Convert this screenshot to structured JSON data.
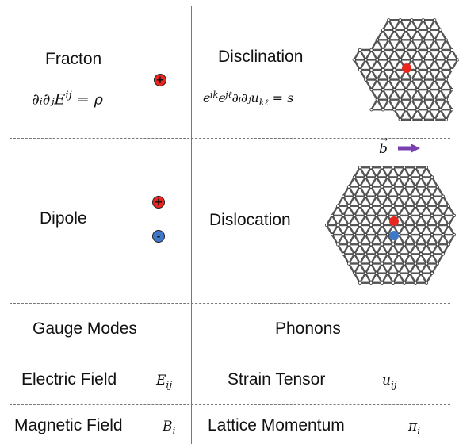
{
  "rows": {
    "fracton": {
      "left_label": "Fracton",
      "right_label": "Disclination",
      "left_eq": "∂ᵢ∂ⱼE",
      "left_eq_sup": "ij",
      "left_eq_rhs": " = ρ",
      "right_eq_a": "ϵ",
      "right_eq_a_sup": "ik",
      "right_eq_b": "ϵ",
      "right_eq_b_sup": "jℓ",
      "right_eq_c": "∂ᵢ∂ⱼu",
      "right_eq_c_sub": "kℓ",
      "right_eq_rhs": " = s"
    },
    "dipole": {
      "left_label": "Dipole",
      "right_label": "Dislocation",
      "burgers": "b"
    },
    "gauge": {
      "left_label": "Gauge Modes",
      "right_label": "Phonons"
    },
    "electric": {
      "left_label": "Electric Field",
      "left_sym": "E",
      "left_sym_sub": "ij",
      "right_label": "Strain Tensor",
      "right_sym": "u",
      "right_sym_sub": "ij"
    },
    "magnetic": {
      "left_label": "Magnetic Field",
      "left_sym": "B",
      "left_sym_sub": "i",
      "right_label": "Lattice Momentum",
      "right_sym": "π",
      "right_sym_sub": "i"
    }
  },
  "charges": {
    "plus": "+",
    "minus": "-"
  },
  "colors": {
    "positive": "#e8251f",
    "negative": "#3f77c9",
    "arrow": "#7a3fb0",
    "lattice": "#555555"
  }
}
